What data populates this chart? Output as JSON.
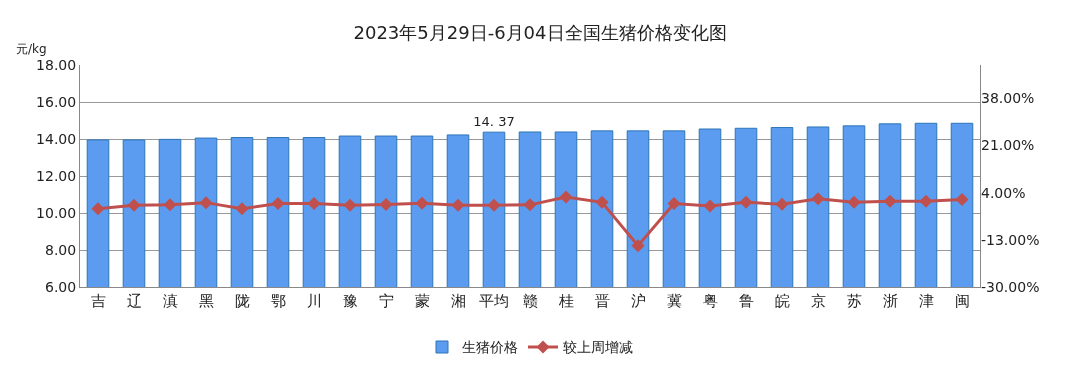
{
  "chart_data": {
    "type": "bar",
    "title": "2023年5月29日-6月04日全国生猪价格变化图",
    "ylabel": "元/kg",
    "categories": [
      "吉",
      "辽",
      "滇",
      "黑",
      "陇",
      "鄂",
      "川",
      "豫",
      "宁",
      "蒙",
      "湘",
      "平均",
      "赣",
      "桂",
      "晋",
      "沪",
      "冀",
      "粤",
      "鲁",
      "皖",
      "京",
      "苏",
      "浙",
      "津",
      "闽"
    ],
    "series": [
      {
        "name": "生猪价格",
        "color": "#5b9bf0",
        "values": [
          13.95,
          13.95,
          13.98,
          14.05,
          14.08,
          14.08,
          14.08,
          14.16,
          14.16,
          14.16,
          14.22,
          14.37,
          14.38,
          14.38,
          14.44,
          14.44,
          14.44,
          14.54,
          14.58,
          14.62,
          14.65,
          14.71,
          14.82,
          14.85,
          14.85
        ],
        "value_labels": [
          null,
          null,
          null,
          null,
          null,
          null,
          null,
          null,
          null,
          null,
          null,
          "14. 37",
          null,
          null,
          null,
          null,
          null,
          null,
          null,
          null,
          null,
          null,
          null,
          null,
          null
        ]
      },
      {
        "name": "较上周增减",
        "type": "line",
        "axis": "y2",
        "color": "#c0504d",
        "marker": "diamond",
        "values": [
          -1.8,
          -0.5,
          -0.4,
          0.4,
          -1.8,
          0.1,
          0.1,
          -0.5,
          -0.3,
          0.2,
          -0.5,
          -0.5,
          -0.4,
          2.4,
          0.5,
          -15.1,
          0.1,
          -0.8,
          0.5,
          -0.2,
          1.8,
          0.5,
          0.9,
          0.9,
          1.5
        ]
      }
    ],
    "ylim": [
      6,
      18
    ],
    "yticks": [
      {
        "value": 6,
        "label": "6.00"
      },
      {
        "value": 8,
        "label": "8.00"
      },
      {
        "value": 10,
        "label": "10.00"
      },
      {
        "value": 12,
        "label": "12.00"
      },
      {
        "value": 14,
        "label": "14.00"
      },
      {
        "value": 16,
        "label": "16.00"
      },
      {
        "value": 18,
        "label": "18.00"
      }
    ],
    "y2lim": [
      -30,
      50
    ],
    "y2ticks": [
      {
        "value": -30,
        "label": "-30.00%"
      },
      {
        "value": -13,
        "label": "-13.00%"
      },
      {
        "value": 4,
        "label": "4.00%"
      },
      {
        "value": 21,
        "label": "21.00%"
      },
      {
        "value": 38,
        "label": "38.00%"
      }
    ],
    "grid": "y",
    "legend": "bottom"
  }
}
